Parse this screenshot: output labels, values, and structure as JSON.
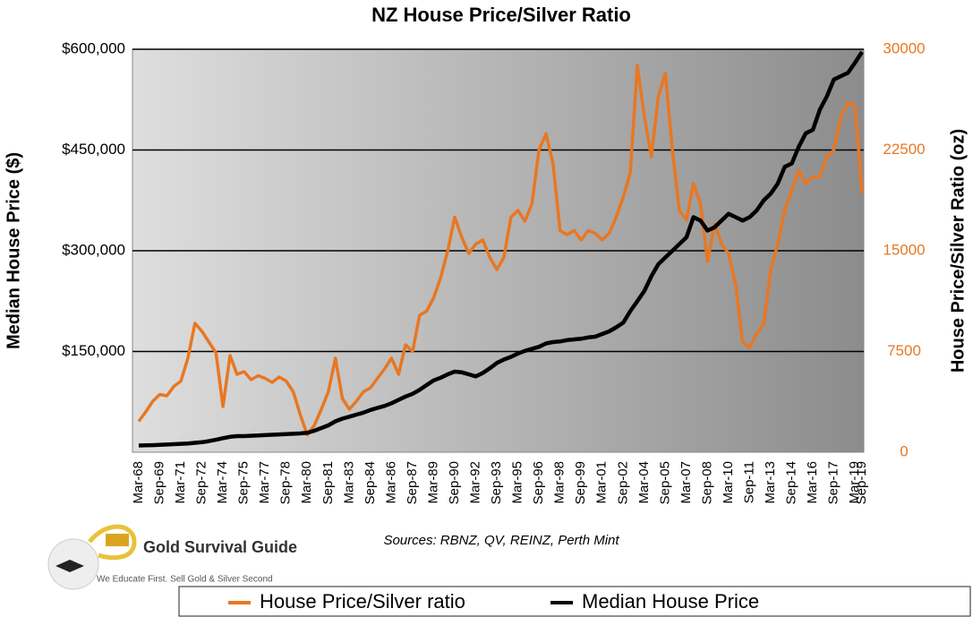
{
  "chart_data": {
    "type": "line",
    "title": "NZ House Price/Silver Ratio",
    "ylabel": "Median House Price ($)",
    "y2label": "House Price/Silver Ratio (oz)",
    "source": "Sources: RBNZ, QV, REINZ, Perth Mint",
    "categories": [
      "Mar-68",
      null,
      null,
      "Sep-69",
      null,
      null,
      "Mar-71",
      null,
      null,
      "Sep-72",
      null,
      null,
      "Mar-74",
      null,
      null,
      "Sep-75",
      null,
      null,
      "Mar-77",
      null,
      null,
      "Sep-78",
      null,
      null,
      "Mar-80",
      null,
      null,
      "Sep-81",
      null,
      null,
      "Mar-83",
      null,
      null,
      "Sep-84",
      null,
      null,
      "Mar-86",
      null,
      null,
      "Sep-87",
      null,
      null,
      "Mar-89",
      null,
      null,
      "Sep-90",
      null,
      null,
      "Mar-92",
      null,
      null,
      "Sep-93",
      null,
      null,
      "Mar-95",
      null,
      null,
      "Sep-96",
      null,
      null,
      "Mar-98",
      null,
      null,
      "Sep-99",
      null,
      null,
      "Mar-01",
      null,
      null,
      "Sep-02",
      null,
      null,
      "Mar-04",
      null,
      null,
      "Sep-05",
      null,
      null,
      "Mar-07",
      null,
      null,
      "Sep-08",
      null,
      null,
      "Mar-10",
      null,
      null,
      "Sep-11",
      null,
      null,
      "Mar-13",
      null,
      null,
      "Sep-14",
      null,
      null,
      "Mar-16",
      null,
      null,
      "Sep-17",
      null,
      null,
      "Mar-19",
      "Sep-19"
    ],
    "series": [
      {
        "name": "House Price/Silver ratio",
        "color": "#e87722",
        "axis": "y2",
        "values": [
          2300,
          3000,
          3800,
          4300,
          4200,
          4900,
          5300,
          7000,
          9600,
          9000,
          8200,
          7400,
          3400,
          7200,
          5800,
          6000,
          5400,
          5700,
          5500,
          5200,
          5600,
          5300,
          4500,
          2800,
          1300,
          2000,
          3200,
          4500,
          7000,
          4000,
          3200,
          3800,
          4500,
          4800,
          5500,
          6200,
          7000,
          5800,
          8000,
          7500,
          10200,
          10500,
          11500,
          13000,
          15000,
          17500,
          16000,
          14800,
          15500,
          15800,
          14500,
          13600,
          14500,
          17500,
          18000,
          17200,
          18500,
          22500,
          23700,
          21500,
          16500,
          16200,
          16500,
          15800,
          16500,
          16300,
          15800,
          16300,
          17500,
          19000,
          20800,
          28800,
          25000,
          22000,
          26500,
          28200,
          22500,
          18000,
          17300,
          20000,
          18500,
          14200,
          17000,
          15500,
          14800,
          12500,
          8200,
          7800,
          8800,
          9500,
          13500,
          15500,
          18000,
          19500,
          21000,
          20000,
          20500,
          20500,
          22000,
          22500,
          25000,
          26000,
          25800,
          19300
        ]
      },
      {
        "name": "Median House Price",
        "color": "#000000",
        "values": [
          10000,
          10300,
          10600,
          11000,
          11500,
          12000,
          12500,
          13000,
          14000,
          15000,
          16500,
          18500,
          21000,
          23000,
          24000,
          24000,
          24500,
          25000,
          25500,
          26000,
          26500,
          27000,
          27500,
          28000,
          29000,
          32000,
          36000,
          40000,
          46000,
          50000,
          53000,
          56000,
          59000,
          63000,
          66000,
          69000,
          73000,
          78000,
          83000,
          87000,
          93000,
          100000,
          107000,
          111000,
          116000,
          120000,
          119000,
          116000,
          113000,
          118000,
          125000,
          133000,
          138000,
          142000,
          147000,
          151000,
          154000,
          157000,
          162000,
          164000,
          165000,
          167000,
          168000,
          169000,
          171000,
          172000,
          176000,
          180000,
          186000,
          193000,
          210000,
          225000,
          240000,
          262000,
          280000,
          290000,
          300000,
          310000,
          320000,
          350000,
          345000,
          330000,
          335000,
          345000,
          355000,
          350000,
          345000,
          350000,
          360000,
          375000,
          385000,
          400000,
          425000,
          430000,
          455000,
          475000,
          480000,
          510000,
          530000,
          555000,
          560000,
          565000,
          580000,
          596000
        ]
      }
    ],
    "ylim": [
      0,
      600000
    ],
    "yticks": [
      {
        "value": 150000,
        "label": "$150,000"
      },
      {
        "value": 300000,
        "label": "$300,000"
      },
      {
        "value": 450000,
        "label": "$450,000"
      },
      {
        "value": 600000,
        "label": "$600,000"
      }
    ],
    "y2lim": [
      0,
      30000
    ],
    "y2ticks": [
      0,
      7500,
      15000,
      22500,
      30000
    ],
    "grid": true,
    "legend": "bottom"
  },
  "logo": {
    "name": "Gold Survival Guide",
    "tagline": "We Educate First. Sell Gold & Silver Second"
  }
}
